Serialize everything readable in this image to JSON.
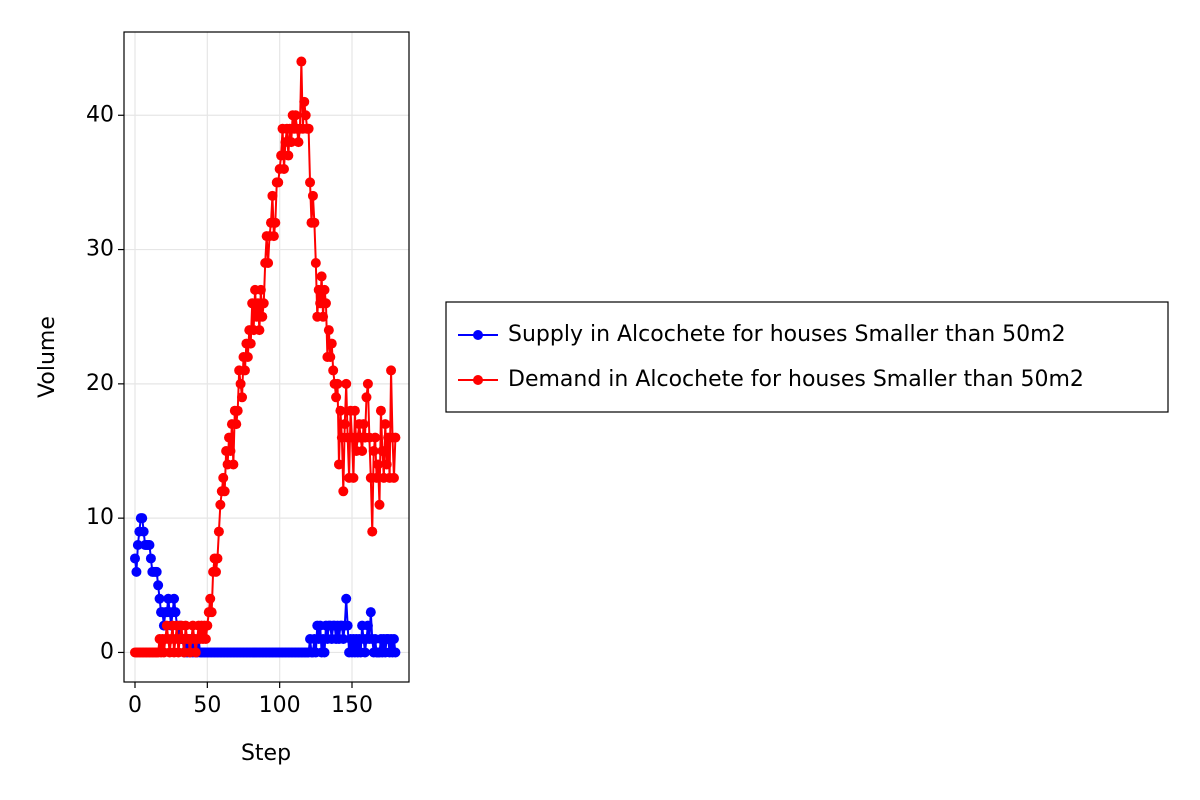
{
  "chart_data": {
    "type": "line",
    "x_label": "Step",
    "y_label": "Volume",
    "x": [
      0,
      1,
      2,
      3,
      4,
      5,
      6,
      7,
      8,
      9,
      10,
      11,
      12,
      13,
      14,
      15,
      16,
      17,
      18,
      19,
      20,
      21,
      22,
      23,
      24,
      25,
      26,
      27,
      28,
      29,
      30,
      31,
      32,
      33,
      34,
      35,
      36,
      37,
      38,
      39,
      40,
      41,
      42,
      43,
      44,
      45,
      46,
      47,
      48,
      49,
      50,
      51,
      52,
      53,
      54,
      55,
      56,
      57,
      58,
      59,
      60,
      61,
      62,
      63,
      64,
      65,
      66,
      67,
      68,
      69,
      70,
      71,
      72,
      73,
      74,
      75,
      76,
      77,
      78,
      79,
      80,
      81,
      82,
      83,
      84,
      85,
      86,
      87,
      88,
      89,
      90,
      91,
      92,
      93,
      94,
      95,
      96,
      97,
      98,
      99,
      100,
      101,
      102,
      103,
      104,
      105,
      106,
      107,
      108,
      109,
      110,
      111,
      112,
      113,
      114,
      115,
      116,
      117,
      118,
      119,
      120,
      121,
      122,
      123,
      124,
      125,
      126,
      127,
      128,
      129,
      130,
      131,
      132,
      133,
      134,
      135,
      136,
      137,
      138,
      139,
      140,
      141,
      142,
      143,
      144,
      145,
      146,
      147,
      148,
      149,
      150,
      151,
      152,
      153,
      154,
      155,
      156,
      157,
      158,
      159,
      160,
      161,
      162,
      163,
      164,
      165,
      166,
      167,
      168,
      169,
      170,
      171,
      172,
      173,
      174,
      175,
      176,
      177,
      178,
      179,
      180
    ],
    "series": [
      {
        "name": "Supply in Alcochete for houses Smaller than 50m2",
        "color": "#0000ff",
        "values": [
          7,
          6,
          8,
          9,
          10,
          10,
          9,
          8,
          8,
          8,
          8,
          7,
          6,
          6,
          6,
          6,
          5,
          4,
          3,
          3,
          2,
          3,
          3,
          4,
          3,
          2,
          3,
          4,
          3,
          2,
          1,
          2,
          1,
          1,
          0,
          1,
          0,
          1,
          0,
          1,
          0,
          1,
          0,
          0,
          1,
          0,
          0,
          0,
          0,
          0,
          0,
          0,
          0,
          0,
          0,
          0,
          0,
          0,
          0,
          0,
          0,
          0,
          0,
          0,
          0,
          0,
          0,
          0,
          0,
          0,
          0,
          0,
          0,
          0,
          0,
          0,
          0,
          0,
          0,
          0,
          0,
          0,
          0,
          0,
          0,
          0,
          0,
          0,
          0,
          0,
          0,
          0,
          0,
          0,
          0,
          0,
          0,
          0,
          0,
          0,
          0,
          0,
          0,
          0,
          0,
          0,
          0,
          0,
          0,
          0,
          0,
          0,
          0,
          0,
          0,
          0,
          0,
          0,
          0,
          0,
          0,
          1,
          0,
          0,
          1,
          0,
          2,
          1,
          2,
          0,
          1,
          0,
          2,
          1,
          2,
          2,
          1,
          2,
          2,
          1,
          2,
          1,
          2,
          2,
          1,
          2,
          4,
          2,
          0,
          1,
          0,
          1,
          0,
          1,
          0,
          1,
          0,
          2,
          1,
          0,
          1,
          2,
          1,
          3,
          1,
          0,
          1,
          0,
          0,
          0,
          1,
          0,
          1,
          0,
          1,
          1,
          0,
          1,
          0,
          1,
          0
        ]
      },
      {
        "name": "Demand in Alcochete for houses Smaller than 50m2",
        "color": "#ff0000",
        "values": [
          0,
          0,
          0,
          0,
          0,
          0,
          0,
          0,
          0,
          0,
          0,
          0,
          0,
          0,
          0,
          0,
          0,
          1,
          0,
          1,
          0,
          1,
          2,
          1,
          0,
          1,
          2,
          0,
          1,
          2,
          0,
          1,
          2,
          1,
          0,
          2,
          1,
          1,
          0,
          1,
          2,
          1,
          0,
          1,
          2,
          1,
          2,
          1,
          2,
          1,
          2,
          3,
          4,
          3,
          6,
          7,
          6,
          7,
          9,
          11,
          12,
          13,
          12,
          15,
          14,
          16,
          15,
          17,
          14,
          18,
          17,
          18,
          21,
          20,
          19,
          22,
          21,
          23,
          22,
          24,
          23,
          26,
          24,
          27,
          25,
          26,
          24,
          27,
          25,
          26,
          29,
          31,
          29,
          31,
          32,
          34,
          31,
          32,
          35,
          35,
          36,
          37,
          39,
          36,
          38,
          39,
          37,
          39,
          38,
          40,
          39,
          40,
          39,
          38,
          39,
          44,
          39,
          41,
          40,
          39,
          39,
          35,
          32,
          34,
          32,
          29,
          25,
          27,
          26,
          28,
          25,
          27,
          26,
          22,
          24,
          22,
          23,
          21,
          20,
          19,
          20,
          14,
          18,
          16,
          12,
          17,
          20,
          16,
          13,
          18,
          16,
          13,
          18,
          15,
          16,
          17,
          16,
          15,
          17,
          16,
          19,
          20,
          16,
          13,
          9,
          15,
          16,
          13,
          14,
          11,
          18,
          15,
          13,
          17,
          14,
          16,
          13,
          21,
          16,
          13,
          16
        ]
      }
    ],
    "xlim": [
      -7.6,
      189.4
    ],
    "ylim": [
      -2.2,
      46.2
    ],
    "xticks": [
      0,
      50,
      100,
      150
    ],
    "yticks": [
      0,
      10,
      20,
      30,
      40
    ],
    "grid": true,
    "legend": "right"
  }
}
